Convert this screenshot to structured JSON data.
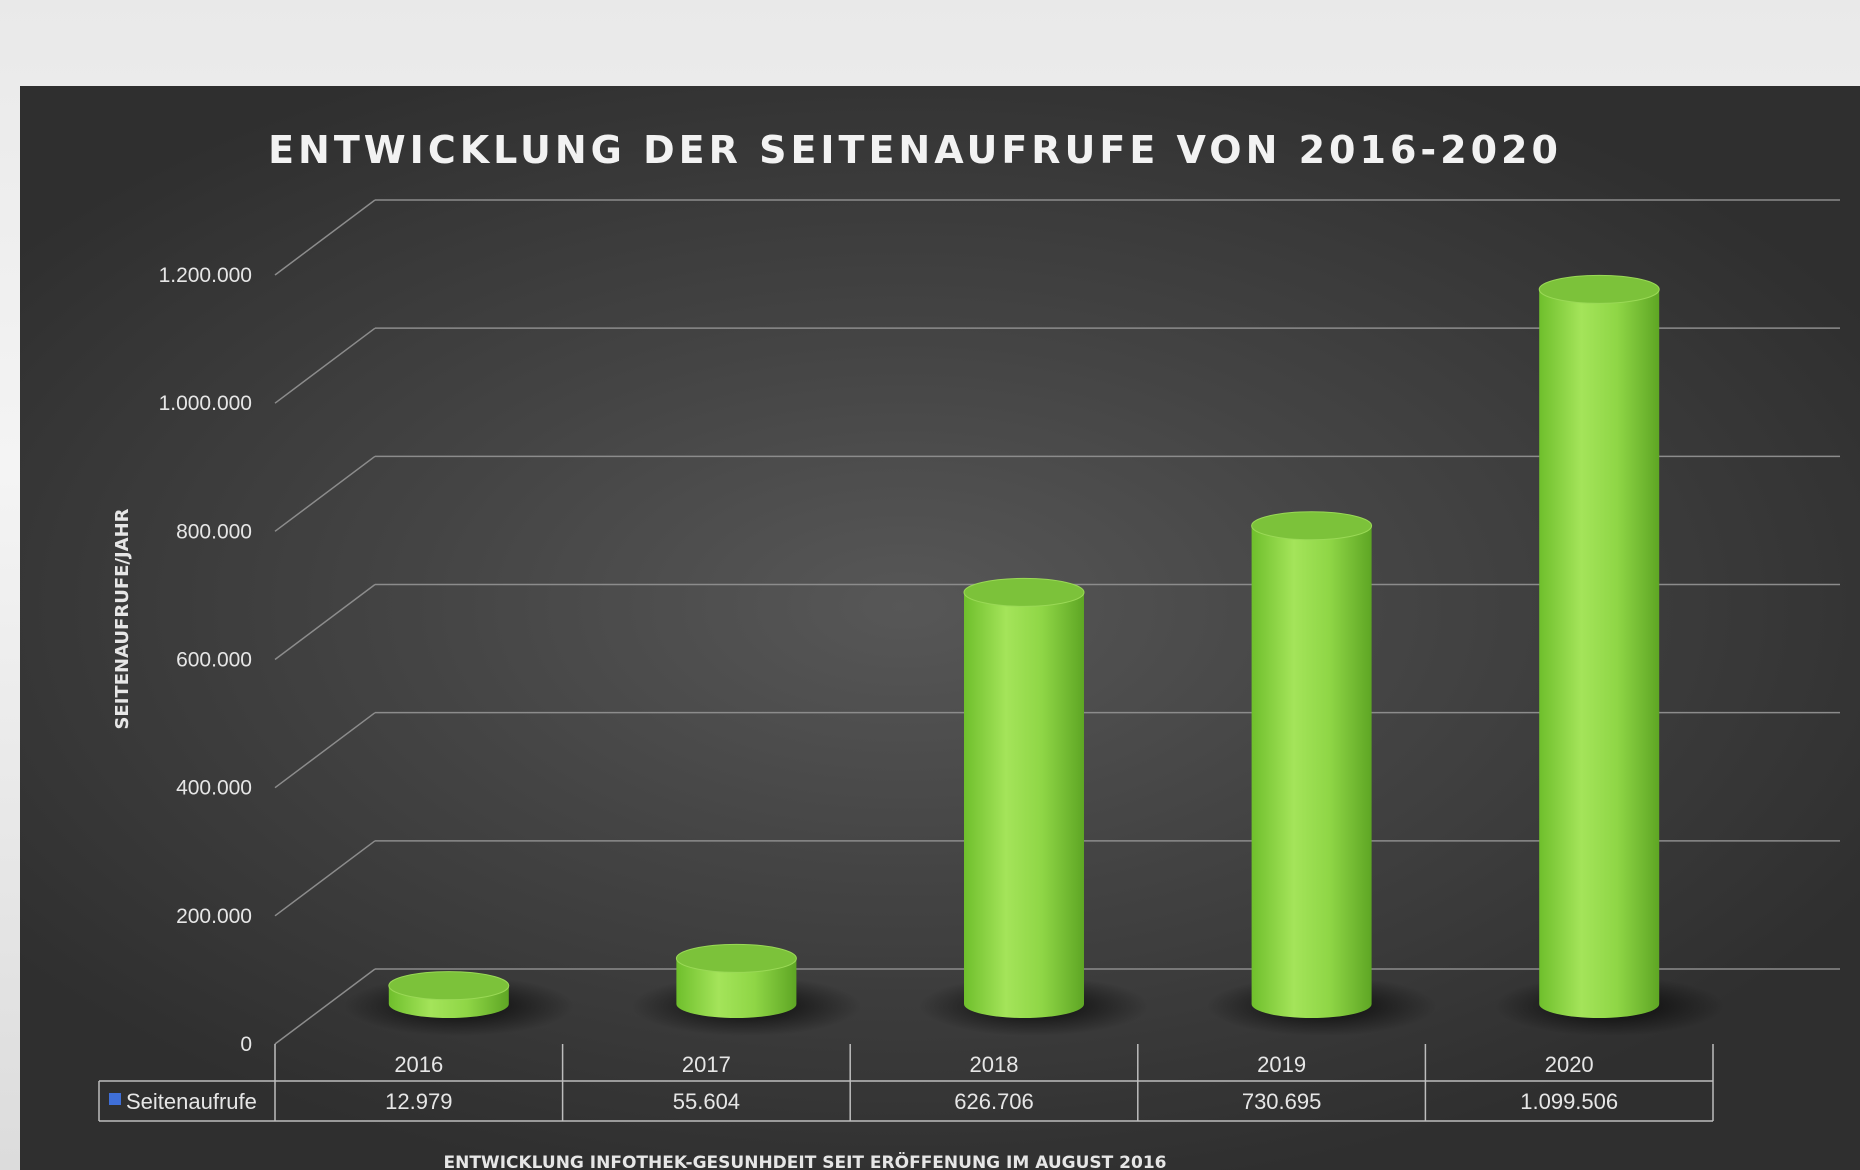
{
  "chart_data": {
    "type": "bar",
    "title": "ENTWICKLUNG DER SEITENAUFRUFE VON 2016-2020",
    "ylabel": "SEITENAUFRUFE/JAHR",
    "footer": "ENTWICKLUNG INFOTHEK-GESUNHDEIT SEIT ERÖFFENUNG IM AUGUST 2016",
    "categories": [
      "2016",
      "2017",
      "2018",
      "2019",
      "2020"
    ],
    "series": [
      {
        "name": "Seitenaufrufe",
        "values": [
          12979,
          55604,
          626706,
          730695,
          1099506
        ],
        "value_labels": [
          "12.979",
          "55.604",
          "626.706",
          "730.695",
          "1.099.506"
        ]
      }
    ],
    "yticks": [
      0,
      200000,
      400000,
      600000,
      800000,
      1000000,
      1200000
    ],
    "ytick_labels": [
      "0",
      "200.000",
      "400.000",
      "600.000",
      "800.000",
      "1.000.000",
      "1.200.000"
    ],
    "ylim": [
      0,
      1200000
    ],
    "grid": true,
    "legend": "data-table",
    "colors": {
      "bar": "#8fd646",
      "legend_key": "#3f6fd8"
    }
  }
}
